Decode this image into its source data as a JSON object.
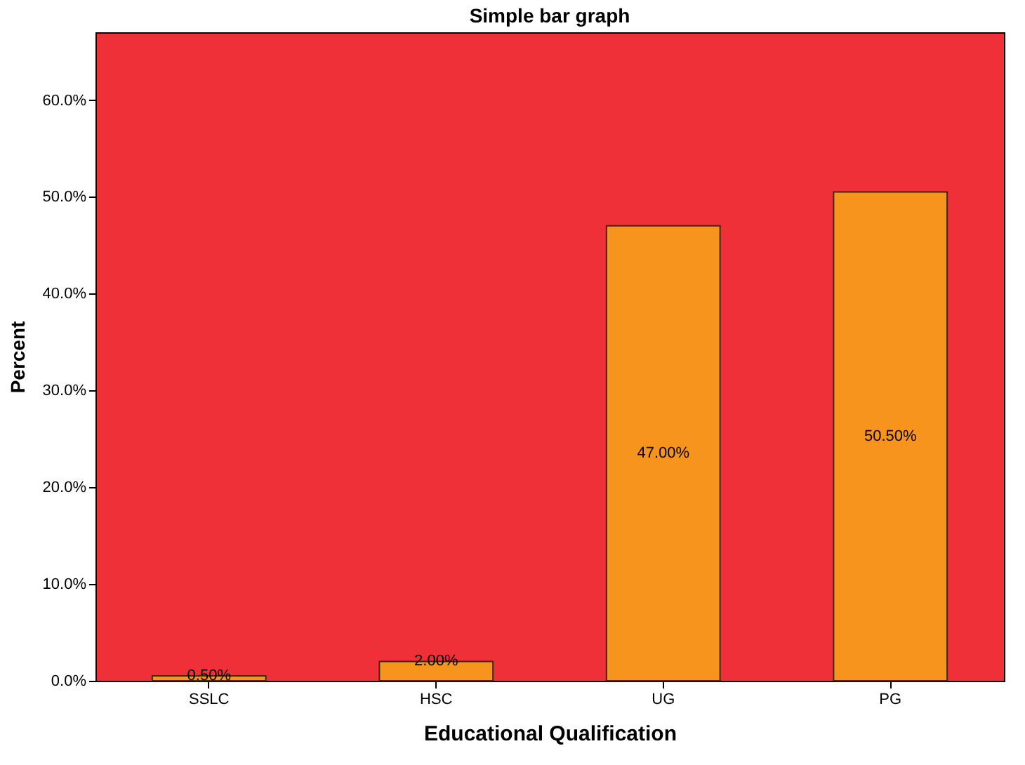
{
  "chart_data": {
    "type": "bar",
    "title": "Simple bar graph",
    "xlabel": "Educational Qualification",
    "ylabel": "Percent",
    "categories": [
      "SSLC",
      "HSC",
      "UG",
      "PG"
    ],
    "values": [
      0.5,
      2.0,
      47.0,
      50.5
    ],
    "value_labels": [
      "0.50%",
      "2.00%",
      "47.00%",
      "50.50%"
    ],
    "color": "#f7941d",
    "ylim": [
      0,
      67
    ],
    "yticks": [
      {
        "value": 0,
        "label": "0.0%"
      },
      {
        "value": 10,
        "label": "10.0%"
      },
      {
        "value": 20,
        "label": "20.0%"
      },
      {
        "value": 30,
        "label": "30.0%"
      },
      {
        "value": 40,
        "label": "40.0%"
      },
      {
        "value": 50,
        "label": "50.0%"
      },
      {
        "value": 60,
        "label": "60.0%"
      }
    ],
    "grid": false
  }
}
